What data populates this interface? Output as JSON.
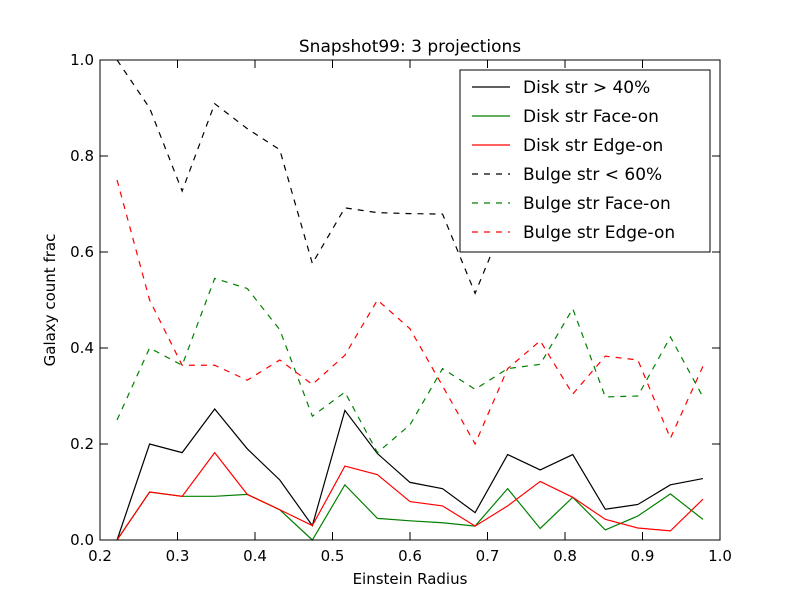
{
  "chart_data": {
    "type": "line",
    "title": "Snapshot99: 3 projections",
    "xlabel": "Einstein Radius",
    "ylabel": "Galaxy count frac",
    "xlim": [
      0.2,
      1.0
    ],
    "ylim": [
      0.0,
      1.0
    ],
    "xticks": [
      "0.2",
      "0.3",
      "0.4",
      "0.5",
      "0.6",
      "0.7",
      "0.8",
      "0.9",
      "1.0"
    ],
    "yticks": [
      "0.0",
      "0.2",
      "0.4",
      "0.6",
      "0.8",
      "1.0"
    ],
    "legend_position": "top-right",
    "x": [
      0.222,
      0.264,
      0.306,
      0.348,
      0.39,
      0.432,
      0.474,
      0.516,
      0.558,
      0.6,
      0.642,
      0.684,
      0.726,
      0.768,
      0.81,
      0.852,
      0.894,
      0.936,
      0.978
    ],
    "series": [
      {
        "name": "Disk str > 40%",
        "color": "#000000",
        "dash": "solid",
        "values": [
          0.0,
          0.2,
          0.182,
          0.273,
          0.19,
          0.125,
          0.03,
          0.27,
          0.18,
          0.12,
          0.107,
          0.057,
          0.178,
          0.146,
          0.178,
          0.064,
          0.074,
          0.115,
          0.128
        ]
      },
      {
        "name": "Disk str Face-on",
        "color": "#008000",
        "dash": "solid",
        "values": [
          0.0,
          0.1,
          0.091,
          0.091,
          0.095,
          0.063,
          0.0,
          0.115,
          0.045,
          0.04,
          0.036,
          0.029,
          0.107,
          0.024,
          0.089,
          0.021,
          0.05,
          0.096,
          0.043
        ]
      },
      {
        "name": "Disk str Edge-on",
        "color": "#ff0000",
        "dash": "solid",
        "values": [
          0.0,
          0.1,
          0.091,
          0.182,
          0.095,
          0.063,
          0.03,
          0.154,
          0.136,
          0.08,
          0.071,
          0.029,
          0.071,
          0.122,
          0.089,
          0.043,
          0.025,
          0.019,
          0.085
        ]
      },
      {
        "name": "Bulge str < 60%",
        "color": "#000000",
        "dash": "dashed",
        "values": [
          1.0,
          0.9,
          0.727,
          0.909,
          0.857,
          0.813,
          0.576,
          0.692,
          0.682,
          0.68,
          0.679,
          0.514,
          0.679,
          0.707,
          0.714,
          0.766,
          0.775,
          0.712,
          0.66
        ]
      },
      {
        "name": "Bulge str Face-on",
        "color": "#008000",
        "dash": "dashed",
        "values": [
          0.25,
          0.4,
          0.364,
          0.545,
          0.524,
          0.438,
          0.258,
          0.308,
          0.182,
          0.24,
          0.357,
          0.314,
          0.357,
          0.366,
          0.482,
          0.298,
          0.3,
          0.423,
          0.298
        ]
      },
      {
        "name": "Bulge str Edge-on",
        "color": "#ff0000",
        "dash": "dashed",
        "values": [
          0.75,
          0.5,
          0.364,
          0.364,
          0.333,
          0.375,
          0.324,
          0.385,
          0.5,
          0.44,
          0.321,
          0.2,
          0.357,
          0.415,
          0.304,
          0.383,
          0.375,
          0.212,
          0.362
        ]
      }
    ]
  }
}
